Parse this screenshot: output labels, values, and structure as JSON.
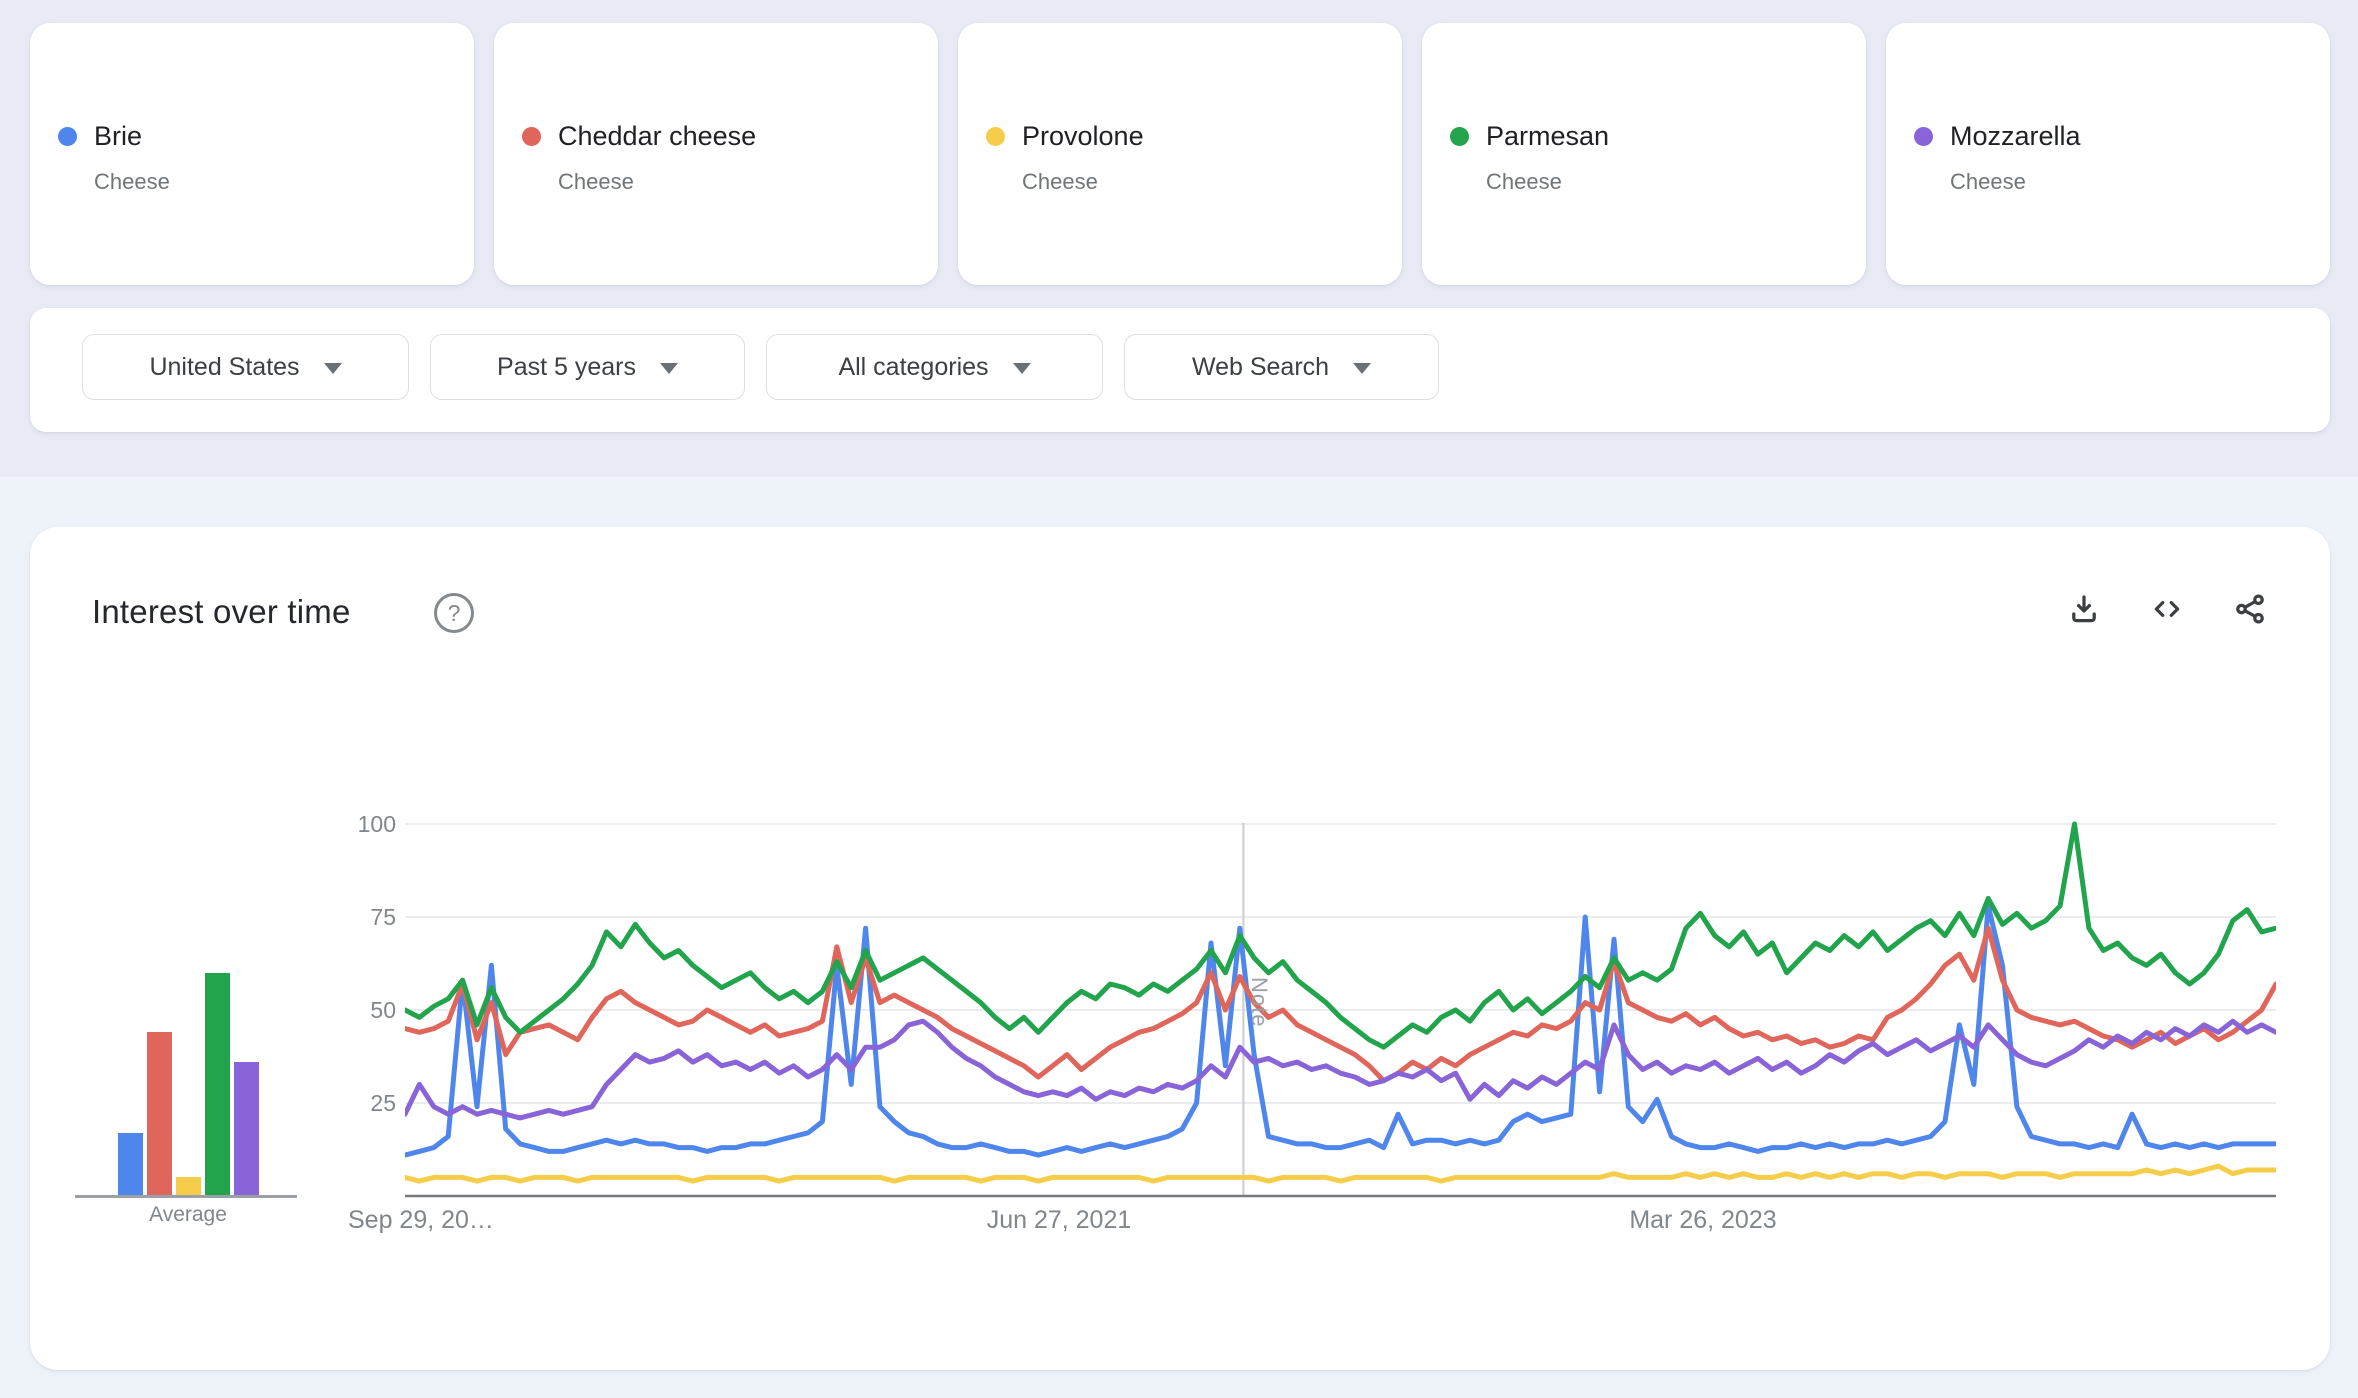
{
  "page": {
    "background_top": "#e8eaf4",
    "background_bottom": "#eef2f9"
  },
  "terms": [
    {
      "label": "Brie",
      "category": "Cheese",
      "color": "#4e86ec"
    },
    {
      "label": "Cheddar cheese",
      "category": "Cheese",
      "color": "#e0655a"
    },
    {
      "label": "Provolone",
      "category": "Cheese",
      "color": "#f5cd4a"
    },
    {
      "label": "Parmesan",
      "category": "Cheese",
      "color": "#21a44c"
    },
    {
      "label": "Mozzarella",
      "category": "Cheese",
      "color": "#8864d8"
    }
  ],
  "filters": {
    "region": "United States",
    "time": "Past 5 years",
    "category": "All categories",
    "search_type": "Web Search"
  },
  "chart_card": {
    "title": "Interest over time",
    "help_glyph": "?",
    "average_label": "Average",
    "actions": [
      "download",
      "embed",
      "share"
    ]
  },
  "chart_data": {
    "type": "line",
    "title": "Interest over time",
    "ylim": [
      0,
      100
    ],
    "grid": "horizontal",
    "y_ticks": [
      100,
      75,
      50,
      25
    ],
    "x_tick_labels": [
      "Sep 29, 20…",
      "Jun 27, 2021",
      "Mar 26, 2023"
    ],
    "x_range_weeks": 260,
    "points_per_series": 131,
    "note_marker": {
      "label": "Note",
      "week": 116.5
    },
    "series": [
      {
        "name": "Brie",
        "color": "#4e86ec",
        "average": 17,
        "values": [
          11,
          12,
          13,
          16,
          58,
          24,
          62,
          18,
          14,
          13,
          12,
          12,
          13,
          14,
          15,
          14,
          15,
          14,
          14,
          13,
          13,
          12,
          13,
          13,
          14,
          14,
          15,
          16,
          17,
          20,
          62,
          30,
          72,
          24,
          20,
          17,
          16,
          14,
          13,
          13,
          14,
          13,
          12,
          12,
          11,
          12,
          13,
          12,
          13,
          14,
          13,
          14,
          15,
          16,
          18,
          25,
          68,
          35,
          72,
          38,
          16,
          15,
          14,
          14,
          13,
          13,
          14,
          15,
          13,
          22,
          14,
          15,
          15,
          14,
          15,
          14,
          15,
          20,
          22,
          20,
          21,
          22,
          75,
          28,
          69,
          24,
          20,
          26,
          16,
          14,
          13,
          13,
          14,
          13,
          12,
          13,
          13,
          14,
          13,
          14,
          13,
          14,
          14,
          15,
          14,
          15,
          16,
          20,
          46,
          30,
          78,
          62,
          24,
          16,
          15,
          14,
          14,
          13,
          14,
          13,
          22,
          14,
          13,
          14,
          13,
          14,
          13,
          14,
          14,
          14,
          14
        ]
      },
      {
        "name": "Cheddar cheese",
        "color": "#e0655a",
        "average": 44,
        "values": [
          45,
          44,
          45,
          47,
          57,
          42,
          52,
          38,
          44,
          45,
          46,
          44,
          42,
          48,
          53,
          55,
          52,
          50,
          48,
          46,
          47,
          50,
          48,
          46,
          44,
          46,
          43,
          44,
          45,
          47,
          67,
          52,
          64,
          52,
          54,
          52,
          50,
          48,
          45,
          43,
          41,
          39,
          37,
          35,
          32,
          35,
          38,
          34,
          37,
          40,
          42,
          44,
          45,
          47,
          49,
          52,
          60,
          50,
          59,
          52,
          48,
          50,
          46,
          44,
          42,
          40,
          38,
          35,
          31,
          33,
          36,
          34,
          37,
          35,
          38,
          40,
          42,
          44,
          43,
          46,
          45,
          47,
          52,
          50,
          63,
          52,
          50,
          48,
          47,
          49,
          46,
          48,
          45,
          43,
          44,
          42,
          43,
          41,
          42,
          40,
          41,
          43,
          42,
          48,
          50,
          53,
          57,
          62,
          65,
          58,
          72,
          58,
          50,
          48,
          47,
          46,
          47,
          45,
          43,
          42,
          40,
          42,
          44,
          41,
          43,
          45,
          42,
          44,
          47,
          50,
          57
        ]
      },
      {
        "name": "Provolone",
        "color": "#f5cd4a",
        "average": 5,
        "values": [
          5,
          4,
          5,
          5,
          5,
          4,
          5,
          5,
          4,
          5,
          5,
          5,
          4,
          5,
          5,
          5,
          5,
          5,
          5,
          5,
          4,
          5,
          5,
          5,
          5,
          5,
          4,
          5,
          5,
          5,
          5,
          5,
          5,
          5,
          4,
          5,
          5,
          5,
          5,
          5,
          4,
          5,
          5,
          5,
          4,
          5,
          5,
          5,
          5,
          5,
          5,
          5,
          4,
          5,
          5,
          5,
          5,
          5,
          5,
          5,
          4,
          5,
          5,
          5,
          5,
          4,
          5,
          5,
          5,
          5,
          5,
          5,
          4,
          5,
          5,
          5,
          5,
          5,
          5,
          5,
          5,
          5,
          5,
          5,
          6,
          5,
          5,
          5,
          5,
          6,
          5,
          6,
          5,
          6,
          5,
          5,
          6,
          5,
          6,
          5,
          6,
          5,
          6,
          6,
          5,
          6,
          6,
          5,
          6,
          6,
          6,
          5,
          6,
          6,
          6,
          5,
          6,
          6,
          6,
          6,
          6,
          7,
          6,
          7,
          6,
          7,
          8,
          6,
          7,
          7,
          7
        ]
      },
      {
        "name": "Parmesan",
        "color": "#21a44c",
        "average": 60,
        "values": [
          50,
          48,
          51,
          53,
          58,
          46,
          56,
          48,
          44,
          47,
          50,
          53,
          57,
          62,
          71,
          67,
          73,
          68,
          64,
          66,
          62,
          59,
          56,
          58,
          60,
          56,
          53,
          55,
          52,
          55,
          63,
          56,
          66,
          58,
          60,
          62,
          64,
          61,
          58,
          55,
          52,
          48,
          45,
          48,
          44,
          48,
          52,
          55,
          53,
          57,
          56,
          54,
          57,
          55,
          58,
          61,
          66,
          60,
          70,
          64,
          60,
          63,
          58,
          55,
          52,
          48,
          45,
          42,
          40,
          43,
          46,
          44,
          48,
          50,
          47,
          52,
          55,
          50,
          53,
          49,
          52,
          55,
          59,
          56,
          64,
          58,
          60,
          58,
          61,
          72,
          76,
          70,
          67,
          71,
          65,
          68,
          60,
          64,
          68,
          66,
          70,
          67,
          71,
          66,
          69,
          72,
          74,
          70,
          76,
          70,
          80,
          73,
          76,
          72,
          74,
          78,
          100,
          72,
          66,
          68,
          64,
          62,
          65,
          60,
          57,
          60,
          65,
          74,
          77,
          71,
          72
        ]
      },
      {
        "name": "Mozzarella",
        "color": "#8864d8",
        "average": 36,
        "values": [
          22,
          30,
          24,
          22,
          24,
          22,
          23,
          22,
          21,
          22,
          23,
          22,
          23,
          24,
          30,
          34,
          38,
          36,
          37,
          39,
          36,
          38,
          35,
          36,
          34,
          36,
          33,
          35,
          32,
          34,
          38,
          34,
          40,
          40,
          42,
          46,
          47,
          44,
          40,
          37,
          35,
          32,
          30,
          28,
          27,
          28,
          27,
          29,
          26,
          28,
          27,
          29,
          28,
          30,
          29,
          31,
          35,
          32,
          40,
          36,
          37,
          35,
          36,
          34,
          35,
          33,
          32,
          30,
          31,
          33,
          32,
          34,
          31,
          33,
          26,
          30,
          27,
          31,
          29,
          32,
          30,
          33,
          36,
          34,
          46,
          38,
          34,
          36,
          33,
          35,
          34,
          36,
          33,
          35,
          37,
          34,
          36,
          33,
          35,
          38,
          36,
          39,
          41,
          38,
          40,
          42,
          39,
          41,
          43,
          40,
          46,
          42,
          38,
          36,
          35,
          37,
          39,
          42,
          40,
          43,
          41,
          44,
          42,
          45,
          43,
          46,
          44,
          47,
          44,
          46,
          44
        ]
      }
    ]
  }
}
